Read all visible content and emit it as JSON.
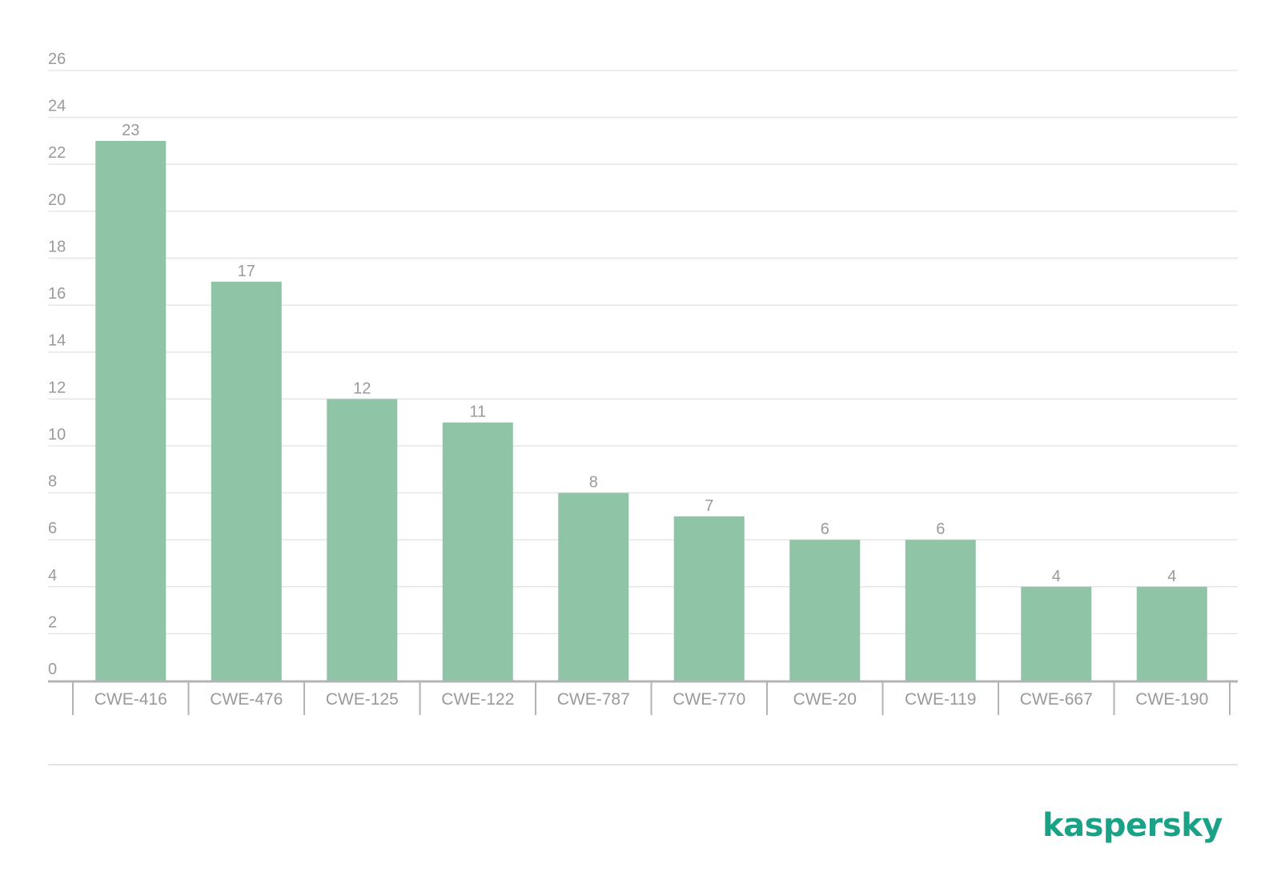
{
  "chart_data": {
    "type": "bar",
    "categories": [
      "CWE-416",
      "CWE-476",
      "CWE-125",
      "CWE-122",
      "CWE-787",
      "CWE-770",
      "CWE-20",
      "CWE-119",
      "CWE-667",
      "CWE-190"
    ],
    "values": [
      23,
      17,
      12,
      11,
      8,
      7,
      6,
      6,
      4,
      4
    ],
    "ylim": [
      0,
      26
    ],
    "yticks": [
      0,
      2,
      4,
      6,
      8,
      10,
      12,
      14,
      16,
      18,
      20,
      22,
      24,
      26
    ],
    "grid": true,
    "data_labels": true,
    "bar_color": "#90c4a7",
    "text_color": "#9a9a9a",
    "grid_color": "#e6e6e6",
    "axis_color": "#b3b3b3"
  },
  "brand": {
    "name": "kaspersky",
    "color": "#1aa286"
  }
}
